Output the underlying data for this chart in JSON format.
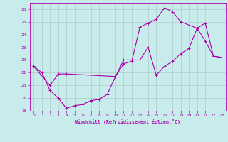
{
  "xlabel": "Windchill (Refroidissement éolien,°C)",
  "xlim": [
    -0.5,
    23.5
  ],
  "ylim": [
    18,
    26.5
  ],
  "xticks": [
    0,
    1,
    2,
    3,
    4,
    5,
    6,
    7,
    8,
    9,
    10,
    11,
    12,
    13,
    14,
    15,
    16,
    17,
    18,
    19,
    20,
    21,
    22,
    23
  ],
  "yticks": [
    18,
    19,
    20,
    21,
    22,
    23,
    24,
    25,
    26
  ],
  "bg_color": "#c8ecec",
  "line_color": "#aa00aa",
  "grid_color": "#b0cccc",
  "line1_x": [
    0,
    1,
    2,
    3,
    4,
    5,
    6,
    7,
    8,
    9,
    10,
    11,
    12,
    13,
    14,
    15,
    16,
    17,
    18,
    20,
    21,
    22,
    23
  ],
  "line1_y": [
    21.5,
    21.0,
    19.6,
    19.0,
    18.2,
    18.4,
    18.5,
    18.8,
    18.9,
    19.3,
    20.7,
    21.7,
    21.9,
    24.6,
    24.9,
    25.2,
    26.1,
    25.8,
    25.0,
    24.5,
    23.5,
    22.3,
    22.2
  ],
  "line2_x": [
    0,
    2,
    3,
    4,
    10,
    11,
    13,
    14,
    15,
    16,
    17,
    18,
    19,
    20,
    21,
    22,
    23
  ],
  "line2_y": [
    21.5,
    20.0,
    20.9,
    20.9,
    20.7,
    22.0,
    22.0,
    23.0,
    20.8,
    21.5,
    21.9,
    22.5,
    22.9,
    24.5,
    24.9,
    22.3,
    22.2
  ]
}
